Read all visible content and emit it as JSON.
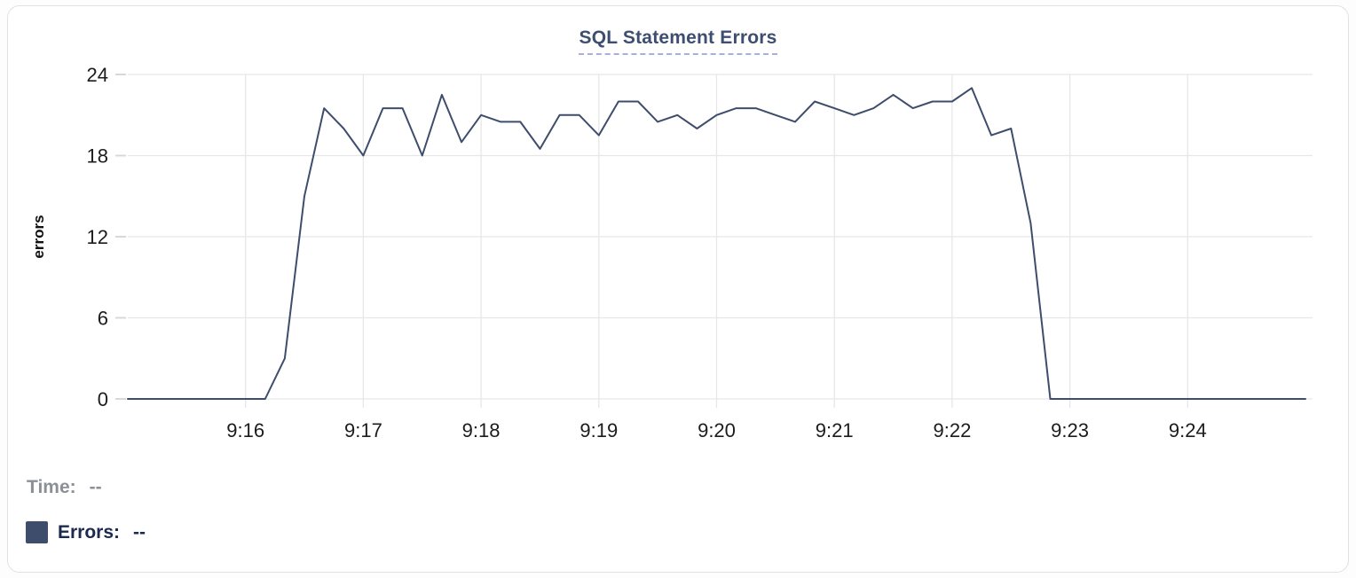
{
  "chart": {
    "title": "SQL Statement Errors",
    "y_axis_label": "errors"
  },
  "readout": {
    "time_label": "Time:",
    "time_value": "--",
    "errors_label": "Errors:",
    "errors_value": "--"
  },
  "colors": {
    "line": "#3e4d6c",
    "legend_swatch": "#3e4d6c",
    "title_text": "#3d4e70",
    "title_underline": "#a5b1d6",
    "grid": "#e7e7e7",
    "y_tick_dash": "#d8d8d8",
    "axis_tick_text": "#1c1c1c",
    "time_text": "#8b8f96",
    "errors_text": "#1b2a4e",
    "card_border": "#dfe1e4"
  },
  "chart_data": {
    "type": "line",
    "title": "SQL Statement Errors",
    "xlabel": "",
    "ylabel": "errors",
    "ylim": [
      0,
      24
    ],
    "y_ticks": [
      0,
      6,
      12,
      18,
      24
    ],
    "x_domain": [
      "9:15:00",
      "9:25:00"
    ],
    "x_tick_labels": [
      "9:16",
      "9:17",
      "9:18",
      "9:19",
      "9:20",
      "9:21",
      "9:22",
      "9:23",
      "9:24"
    ],
    "grid": true,
    "legend_position": "bottom-left",
    "series": [
      {
        "name": "Errors",
        "x": [
          "9:15:00",
          "9:15:10",
          "9:15:20",
          "9:15:30",
          "9:15:40",
          "9:15:50",
          "9:16:00",
          "9:16:10",
          "9:16:20",
          "9:16:30",
          "9:16:40",
          "9:16:50",
          "9:17:00",
          "9:17:10",
          "9:17:20",
          "9:17:30",
          "9:17:40",
          "9:17:50",
          "9:18:00",
          "9:18:10",
          "9:18:20",
          "9:18:30",
          "9:18:40",
          "9:18:50",
          "9:19:00",
          "9:19:10",
          "9:19:20",
          "9:19:30",
          "9:19:40",
          "9:19:50",
          "9:20:00",
          "9:20:10",
          "9:20:20",
          "9:20:30",
          "9:20:40",
          "9:20:50",
          "9:21:00",
          "9:21:10",
          "9:21:20",
          "9:21:30",
          "9:21:40",
          "9:21:50",
          "9:22:00",
          "9:22:10",
          "9:22:20",
          "9:22:30",
          "9:22:40",
          "9:22:50",
          "9:23:00",
          "9:23:10",
          "9:23:20",
          "9:23:30",
          "9:23:40",
          "9:23:50",
          "9:24:00",
          "9:24:10",
          "9:24:20",
          "9:24:30",
          "9:24:40",
          "9:24:50",
          "9:25:00"
        ],
        "values": [
          0,
          0,
          0,
          0,
          0,
          0,
          0,
          0,
          3,
          15,
          21.5,
          20,
          18,
          21.5,
          21.5,
          18,
          22.5,
          19,
          21,
          20.5,
          20.5,
          18.5,
          21,
          21,
          19.5,
          22,
          22,
          20.5,
          21,
          20,
          21,
          21.5,
          21.5,
          21,
          20.5,
          22,
          21.5,
          21,
          21.5,
          22.5,
          21.5,
          22,
          22,
          23,
          19.5,
          20,
          13,
          0,
          0,
          0,
          0,
          0,
          0,
          0,
          0,
          0,
          0,
          0,
          0,
          0,
          0
        ]
      }
    ]
  }
}
